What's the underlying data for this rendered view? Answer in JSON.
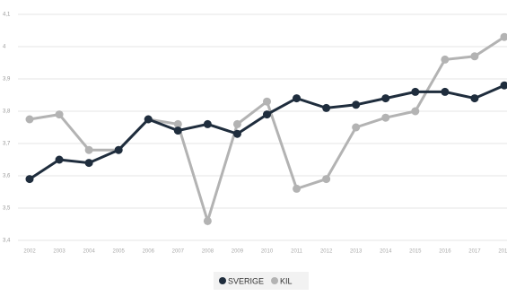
{
  "chart_data": {
    "type": "line",
    "x": [
      "2002",
      "2003",
      "2004",
      "2005",
      "2006",
      "2007",
      "2008",
      "2009",
      "2010",
      "2011",
      "2012",
      "2013",
      "2014",
      "2015",
      "2016",
      "2017",
      "2018"
    ],
    "series": [
      {
        "name": "SVERIGE",
        "color": "#1f2d3d",
        "values": [
          3.59,
          3.65,
          3.64,
          3.68,
          3.775,
          3.74,
          3.76,
          3.73,
          3.79,
          3.84,
          3.81,
          3.82,
          3.84,
          3.86,
          3.86,
          3.84,
          3.88
        ]
      },
      {
        "name": "KIL",
        "color": "#b3b3b3",
        "values": [
          3.775,
          3.79,
          3.68,
          3.68,
          3.775,
          3.76,
          3.46,
          3.76,
          3.83,
          3.56,
          3.59,
          3.75,
          3.78,
          3.8,
          3.96,
          3.97,
          4.03
        ]
      }
    ],
    "ylim": [
      3.4,
      4.1
    ],
    "yticks": [
      {
        "value": 3.4,
        "label": "3,4"
      },
      {
        "value": 3.5,
        "label": "3,5"
      },
      {
        "value": 3.6,
        "label": "3,6"
      },
      {
        "value": 3.7,
        "label": "3,7"
      },
      {
        "value": 3.8,
        "label": "3,8"
      },
      {
        "value": 3.9,
        "label": "3,9"
      },
      4,
      {
        "value": 4.1,
        "label": "4,1"
      }
    ],
    "grid": true,
    "legend": "bottom"
  }
}
